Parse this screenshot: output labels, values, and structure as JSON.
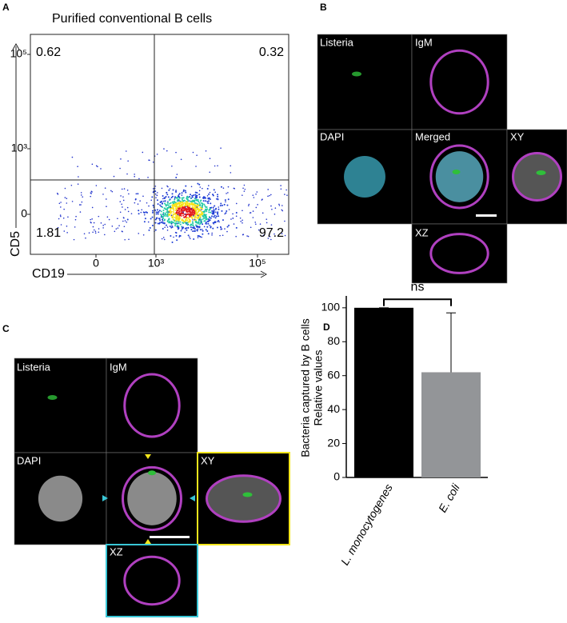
{
  "panel_a": {
    "label": "A",
    "title": "Purified conventional B cells",
    "quadrants": [
      "0.62",
      "0.32",
      "1.81",
      "97.2"
    ],
    "y_label": "CD5",
    "x_label": "CD19",
    "y_ticks": [
      "10⁵",
      "10³",
      "0"
    ],
    "x_ticks": [
      "0",
      "10³",
      "10⁵"
    ]
  },
  "panel_b": {
    "label": "B",
    "tiles": [
      "Listeria",
      "IgM",
      "DAPI",
      "Merged",
      "XY",
      "XZ"
    ]
  },
  "panel_c": {
    "label": "C",
    "tiles": [
      "Listeria",
      "IgM",
      "DAPI",
      "XY",
      "XZ"
    ]
  },
  "panel_d": {
    "label": "D",
    "type": "bar",
    "y_label": [
      "Bacteria captured by B cells",
      "Relative values"
    ],
    "categories": [
      "L. monocytogenes",
      "E. coli"
    ],
    "values": [
      100,
      62
    ],
    "errors": [
      0,
      35
    ],
    "colors": [
      "#000000",
      "#939598"
    ],
    "ylim": [
      0,
      107
    ],
    "yticks": [
      0,
      20,
      40,
      60,
      80,
      100
    ],
    "annotation": "ns"
  }
}
